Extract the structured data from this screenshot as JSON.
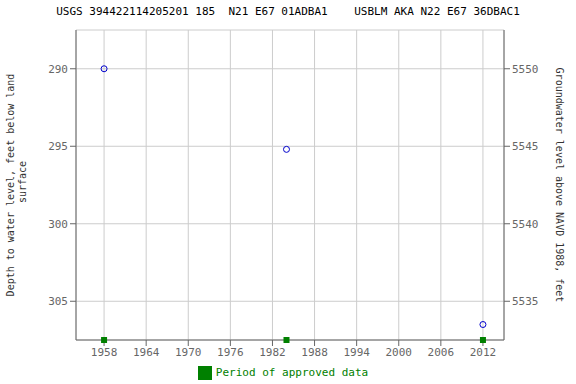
{
  "chart_data": {
    "type": "scatter",
    "title": "USGS 394422114205201 185  N21 E67 01ADBA1    USBLM AKA N22 E67 36DBAC1",
    "y_label": "Depth to water level, feet below land\n surface",
    "y2_label": "Groundwater level above NAVD 1988, feet",
    "series": [
      {
        "x": [
          1958.0,
          1984.0,
          2012.0
        ],
        "values": [
          290.0,
          295.2,
          306.5
        ],
        "color": "#0000cc",
        "marker": "circle"
      },
      {
        "name": "Period of approved data",
        "x": [
          1958.0,
          1984.0,
          2012.0
        ],
        "values": [
          307.5,
          307.5,
          307.5
        ],
        "color": "#008000",
        "marker": "square"
      }
    ],
    "xlim": [
      1954,
      2015
    ],
    "xticks": [
      1958,
      1964,
      1970,
      1976,
      1982,
      1988,
      1994,
      2000,
      2006,
      2012
    ],
    "ylim": [
      307.5,
      287.5
    ],
    "yticks": [
      290,
      295,
      300,
      305
    ],
    "y2lim": [
      5532.5,
      5552.5
    ],
    "y2ticks": [
      5535,
      5540,
      5545,
      5550
    ],
    "grid": true,
    "legend": "bottom"
  }
}
